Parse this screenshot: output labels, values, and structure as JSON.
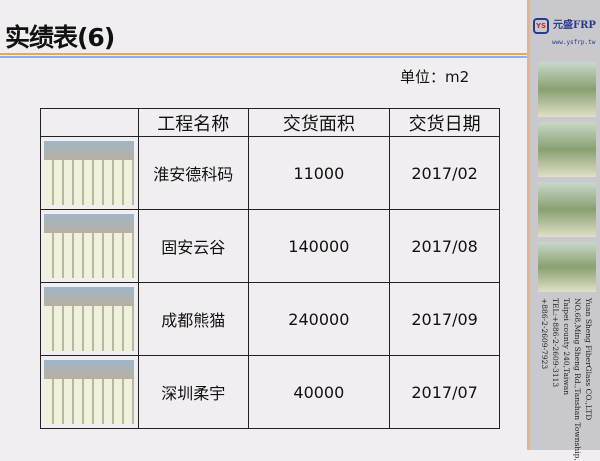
{
  "title": "实绩表(6)",
  "unit": "单位：m2",
  "table": {
    "headers": [
      "",
      "工程名称",
      "交货面积",
      "交货日期"
    ],
    "rows": [
      {
        "name": "淮安德科码",
        "area": "11000",
        "date": "2017/02"
      },
      {
        "name": "固安云谷",
        "area": "140000",
        "date": "2017/08"
      },
      {
        "name": "成都熊猫",
        "area": "240000",
        "date": "2017/09"
      },
      {
        "name": "深圳柔宇",
        "area": "40000",
        "date": "2017/07"
      }
    ]
  },
  "sidebar": {
    "logo_mark": "YS",
    "logo_text": "元盛FRP",
    "logo_url": "www.ysfrp.tw",
    "address": [
      "Yuan Sheng FiberGlass CO.,LTD",
      "NO.68,Ming Sheng Rd.,Tanshan Township,",
      "Taipei county 240,Taiwan",
      "TEL:+886-2-2609-3113",
      "+886-2-2609-7923"
    ]
  },
  "colors": {
    "accent_line_orange": "#e0a860",
    "accent_line_blue": "#8fb0e0",
    "logo_blue": "#2a3a8a"
  }
}
